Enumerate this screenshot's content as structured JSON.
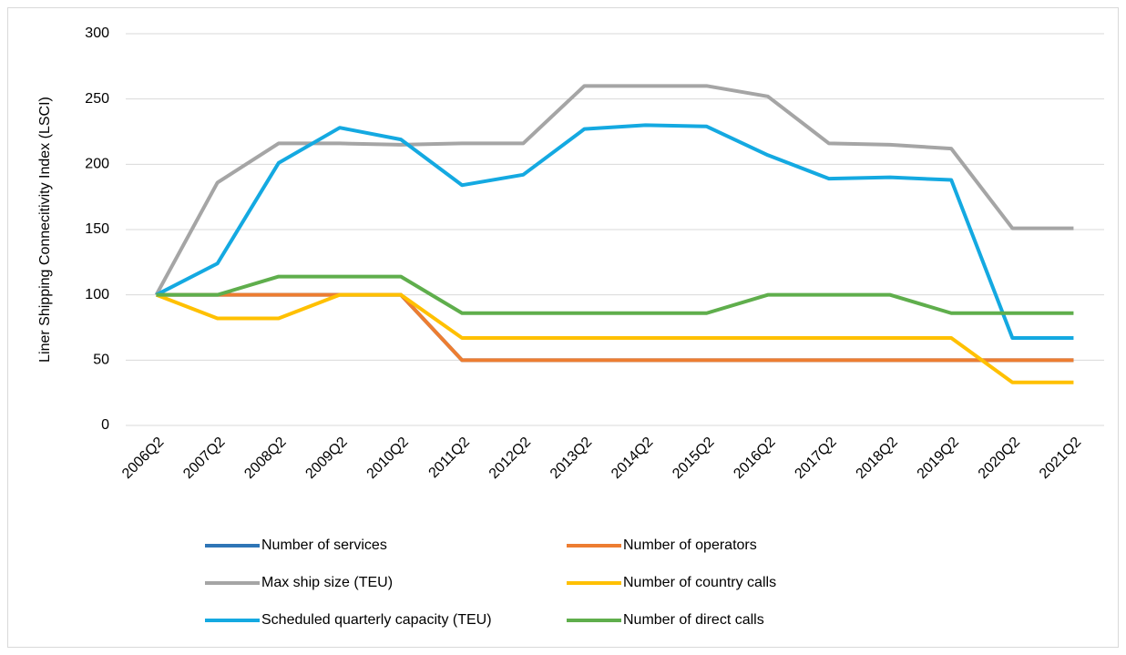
{
  "chart_data": {
    "type": "line",
    "y_label": "Liner Shipping Connecitivity Index (LSCI)",
    "categories": [
      "2006Q2",
      "2007Q2",
      "2008Q2",
      "2009Q2",
      "2010Q2",
      "2011Q2",
      "2012Q2",
      "2013Q2",
      "2014Q2",
      "2015Q2",
      "2016Q2",
      "2017Q2",
      "2018Q2",
      "2019Q2",
      "2020Q2",
      "2021Q2"
    ],
    "series": [
      {
        "name": "Number of services",
        "color": "#2e75b6",
        "values": [
          100,
          100,
          100,
          100,
          100,
          50,
          50,
          50,
          50,
          50,
          50,
          50,
          50,
          50,
          50,
          50
        ]
      },
      {
        "name": "Number of operators",
        "color": "#ed7d31",
        "values": [
          100,
          100,
          100,
          100,
          100,
          50,
          50,
          50,
          50,
          50,
          50,
          50,
          50,
          50,
          50,
          50
        ]
      },
      {
        "name": "Max ship size (TEU)",
        "color": "#a5a5a5",
        "values": [
          100,
          186,
          216,
          216,
          215,
          216,
          216,
          260,
          260,
          260,
          252,
          216,
          215,
          212,
          151,
          151
        ]
      },
      {
        "name": "Number of country calls",
        "color": "#ffc000",
        "values": [
          100,
          82,
          82,
          100,
          100,
          67,
          67,
          67,
          67,
          67,
          67,
          67,
          67,
          67,
          33,
          33
        ]
      },
      {
        "name": "Scheduled quarterly capacity (TEU)",
        "color": "#14a9e1",
        "values": [
          100,
          124,
          201,
          228,
          219,
          184,
          192,
          227,
          230,
          229,
          207,
          189,
          190,
          188,
          67,
          67
        ]
      },
      {
        "name": "Number of direct calls",
        "color": "#5fae4c",
        "values": [
          100,
          100,
          114,
          114,
          114,
          86,
          86,
          86,
          86,
          86,
          100,
          100,
          100,
          86,
          86,
          86
        ]
      }
    ],
    "ylim": [
      0,
      300
    ],
    "yticks": [
      0,
      50,
      100,
      150,
      200,
      250,
      300
    ],
    "grid": true
  }
}
